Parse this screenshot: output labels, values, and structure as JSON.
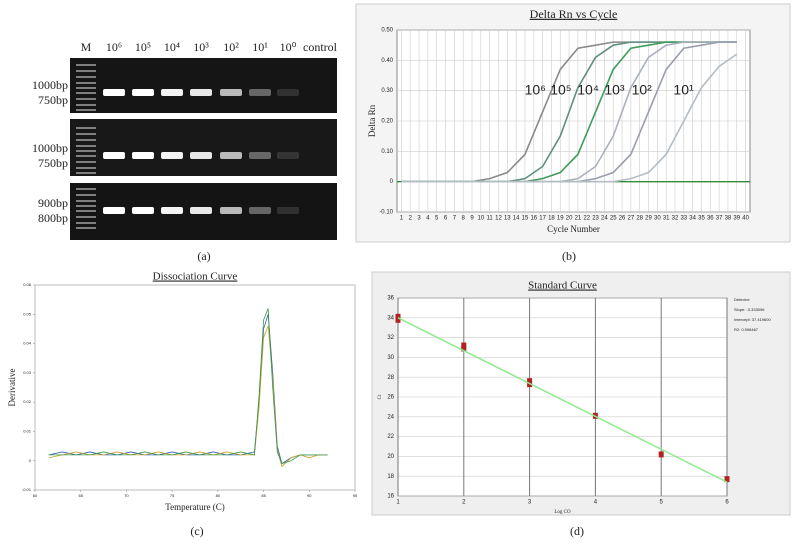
{
  "panel_labels": [
    "(a)",
    "(b)",
    "(c)",
    "(d)"
  ],
  "gel": {
    "lanes": [
      "M",
      "10⁶",
      "10⁵",
      "10⁴",
      "10³",
      "10²",
      "10¹",
      "10⁰",
      "control"
    ],
    "markers": [
      [
        "1000bp",
        "750bp"
      ],
      [
        "1000bp",
        "750bp"
      ],
      [
        "900bp",
        "800bp"
      ]
    ]
  },
  "chart_data": [
    {
      "type": "line",
      "title": "Delta Rn vs Cycle",
      "x_label": "Cycle Number",
      "y_label": "Delta Rn",
      "x": [
        1,
        3,
        5,
        7,
        9,
        11,
        13,
        15,
        17,
        19,
        21,
        23,
        25,
        27,
        29,
        31,
        33,
        35,
        37,
        39
      ],
      "xlim": [
        0.5,
        40.5
      ],
      "xticks": [
        1,
        2,
        3,
        4,
        5,
        6,
        7,
        8,
        9,
        10,
        11,
        12,
        13,
        14,
        15,
        16,
        17,
        18,
        19,
        20,
        21,
        22,
        23,
        24,
        25,
        26,
        27,
        28,
        29,
        30,
        31,
        32,
        33,
        34,
        35,
        36,
        37,
        38,
        39,
        40
      ],
      "ylim": [
        -0.1,
        0.5
      ],
      "yticks": [
        {
          "value": -0.1,
          "label": "-0.10"
        },
        0,
        {
          "value": 0.1,
          "label": "0.10"
        },
        {
          "value": 0.2,
          "label": "0.20"
        },
        {
          "value": 0.3,
          "label": "0.30"
        },
        {
          "value": 0.4,
          "label": "0.40"
        },
        {
          "value": 0.5,
          "label": "0.50"
        }
      ],
      "grid": true,
      "series": [
        {
          "name": "10⁶",
          "color": "#8a8a8a",
          "values": [
            0,
            0,
            0,
            0,
            0,
            0.01,
            0.03,
            0.09,
            0.23,
            0.37,
            0.44,
            0.45,
            0.46,
            0.46,
            0.46,
            0.46,
            0.46,
            0.46,
            0.46,
            0.46
          ]
        },
        {
          "name": "10⁵",
          "color": "#5f8f82",
          "values": [
            0,
            0,
            0,
            0,
            0,
            0,
            0,
            0.01,
            0.05,
            0.15,
            0.31,
            0.41,
            0.45,
            0.46,
            0.46,
            0.46,
            0.46,
            0.46,
            0.46,
            0.46
          ]
        },
        {
          "name": "10⁴",
          "color": "#3f9c5c",
          "values": [
            0,
            0,
            0,
            0,
            0,
            0,
            0,
            0,
            0.01,
            0.03,
            0.09,
            0.23,
            0.37,
            0.44,
            0.45,
            0.46,
            0.46,
            0.46,
            0.46,
            0.46
          ]
        },
        {
          "name": "10³",
          "color": "#aab0bc",
          "values": [
            0,
            0,
            0,
            0,
            0,
            0,
            0,
            0,
            0,
            0,
            0.01,
            0.05,
            0.15,
            0.31,
            0.41,
            0.45,
            0.46,
            0.46,
            0.46,
            0.46
          ]
        },
        {
          "name": "10²",
          "color": "#9a9fae",
          "values": [
            0,
            0,
            0,
            0,
            0,
            0,
            0,
            0,
            0,
            0,
            0,
            0.01,
            0.03,
            0.09,
            0.23,
            0.37,
            0.44,
            0.45,
            0.46,
            0.46
          ]
        },
        {
          "name": "10¹",
          "color": "#b4bcc4",
          "values": [
            0,
            0,
            0,
            0,
            0,
            0,
            0,
            0,
            0,
            0,
            0,
            0,
            0,
            0.01,
            0.03,
            0.09,
            0.2,
            0.31,
            0.38,
            0.42
          ]
        }
      ]
    },
    {
      "type": "line",
      "title": "Dissociation Curve",
      "x_label": "Temperature (C)",
      "y_label": "Derivative",
      "x": [
        61.5,
        63,
        64.5,
        66,
        67.5,
        69,
        70.5,
        72,
        73.5,
        75,
        76.5,
        78,
        79.5,
        81,
        82.5,
        84,
        84.5,
        85,
        85.5,
        86,
        86.5,
        87,
        88,
        89,
        90,
        91,
        92
      ],
      "xlim": [
        60,
        95
      ],
      "xticks": [
        60,
        65,
        70,
        75,
        80,
        85,
        90,
        95
      ],
      "ylim": [
        -0.01,
        0.06
      ],
      "yticks": [
        -0.01,
        0,
        0.01,
        0.02,
        0.03,
        0.04,
        0.05,
        0.06
      ],
      "grid": false,
      "series": [
        {
          "color": "#2e5fb0",
          "values": [
            0.002,
            0.003,
            0.002,
            0.003,
            0.002,
            0.002,
            0.003,
            0.002,
            0.002,
            0.003,
            0.002,
            0.002,
            0.003,
            0.002,
            0.002,
            0.003,
            0.02,
            0.045,
            0.05,
            0.03,
            0.005,
            -0.001,
            0.001,
            0.002,
            0.002,
            0.002,
            0.002
          ]
        },
        {
          "color": "#c9a227",
          "values": [
            0.001,
            0.002,
            0.003,
            0.002,
            0.002,
            0.003,
            0.002,
            0.002,
            0.003,
            0.002,
            0.002,
            0.003,
            0.002,
            0.003,
            0.002,
            0.002,
            0.018,
            0.042,
            0.046,
            0.028,
            0.004,
            -0.002,
            0.001,
            0.002,
            0.001,
            0.002,
            0.002
          ]
        },
        {
          "color": "#3a9a4a",
          "values": [
            0.002,
            0.002,
            0.002,
            0.002,
            0.003,
            0.002,
            0.002,
            0.003,
            0.002,
            0.002,
            0.003,
            0.002,
            0.002,
            0.002,
            0.003,
            0.002,
            0.022,
            0.048,
            0.052,
            0.025,
            0.003,
            -0.001,
            0,
            0.002,
            0.002,
            0.002,
            0.002
          ]
        }
      ]
    },
    {
      "type": "scatter",
      "title": "Standard Curve",
      "x_label": "Log CO",
      "y_label": "Ct",
      "xlim": [
        1,
        6
      ],
      "xticks": [
        1,
        2,
        3,
        4,
        5,
        6
      ],
      "ylim": [
        16,
        36
      ],
      "yticks": [
        16,
        18,
        20,
        22,
        24,
        26,
        28,
        30,
        32,
        34,
        36
      ],
      "grid": true,
      "series": [
        {
          "color": "#b22222",
          "x": [
            1,
            1,
            2,
            2,
            3,
            3,
            4,
            5,
            6
          ],
          "values": [
            33.8,
            34.1,
            30.9,
            31.2,
            27.3,
            27.6,
            24.1,
            20.2,
            17.7
          ]
        }
      ],
      "fit": {
        "color": "#90e890",
        "x": [
          1,
          6
        ],
        "values": [
          34.0,
          17.4
        ]
      },
      "annotations": [
        "Detector:",
        "Slope: -3.333096",
        "Intercept: 37.419600",
        "R2: 0.998467"
      ]
    }
  ]
}
